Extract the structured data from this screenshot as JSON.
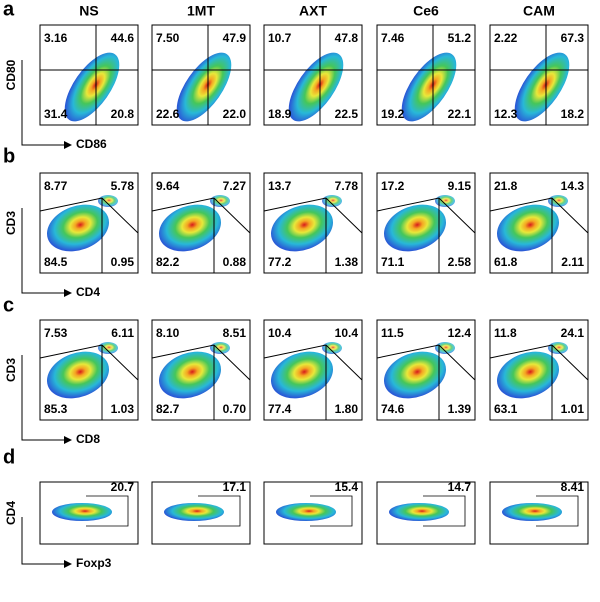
{
  "columns": [
    "NS",
    "1MT",
    "AXT",
    "Ce6",
    "CAM"
  ],
  "panels": [
    {
      "label": "a",
      "ylabel": "CD80",
      "xlabel": "CD86",
      "plots": [
        [
          "3.16",
          "44.6",
          "31.4",
          "20.8"
        ],
        [
          "7.50",
          "47.9",
          "22.6",
          "22.0"
        ],
        [
          "10.7",
          "47.8",
          "18.9",
          "22.5"
        ],
        [
          "7.46",
          "51.2",
          "19.2",
          "22.1"
        ],
        [
          "2.22",
          "67.3",
          "12.3",
          "18.2"
        ]
      ]
    },
    {
      "label": "b",
      "ylabel": "CD3",
      "xlabel": "CD4",
      "plots": [
        [
          "8.77",
          "5.78",
          "84.5",
          "0.95"
        ],
        [
          "9.64",
          "7.27",
          "82.2",
          "0.88"
        ],
        [
          "13.7",
          "7.78",
          "77.2",
          "1.38"
        ],
        [
          "17.2",
          "9.15",
          "71.1",
          "2.58"
        ],
        [
          "21.8",
          "14.3",
          "61.8",
          "2.11"
        ]
      ]
    },
    {
      "label": "c",
      "ylabel": "CD3",
      "xlabel": "CD8",
      "plots": [
        [
          "7.53",
          "6.11",
          "85.3",
          "1.03"
        ],
        [
          "8.10",
          "8.51",
          "82.7",
          "0.70"
        ],
        [
          "10.4",
          "10.4",
          "77.4",
          "1.80"
        ],
        [
          "11.5",
          "12.4",
          "74.6",
          "1.39"
        ],
        [
          "11.8",
          "24.1",
          "63.1",
          "1.01"
        ]
      ]
    },
    {
      "label": "d",
      "ylabel": "CD4",
      "xlabel": "Foxp3",
      "plots": [
        [
          "20.7"
        ],
        [
          "17.1"
        ],
        [
          "15.4"
        ],
        [
          "14.7"
        ],
        [
          "8.41"
        ]
      ]
    }
  ]
}
